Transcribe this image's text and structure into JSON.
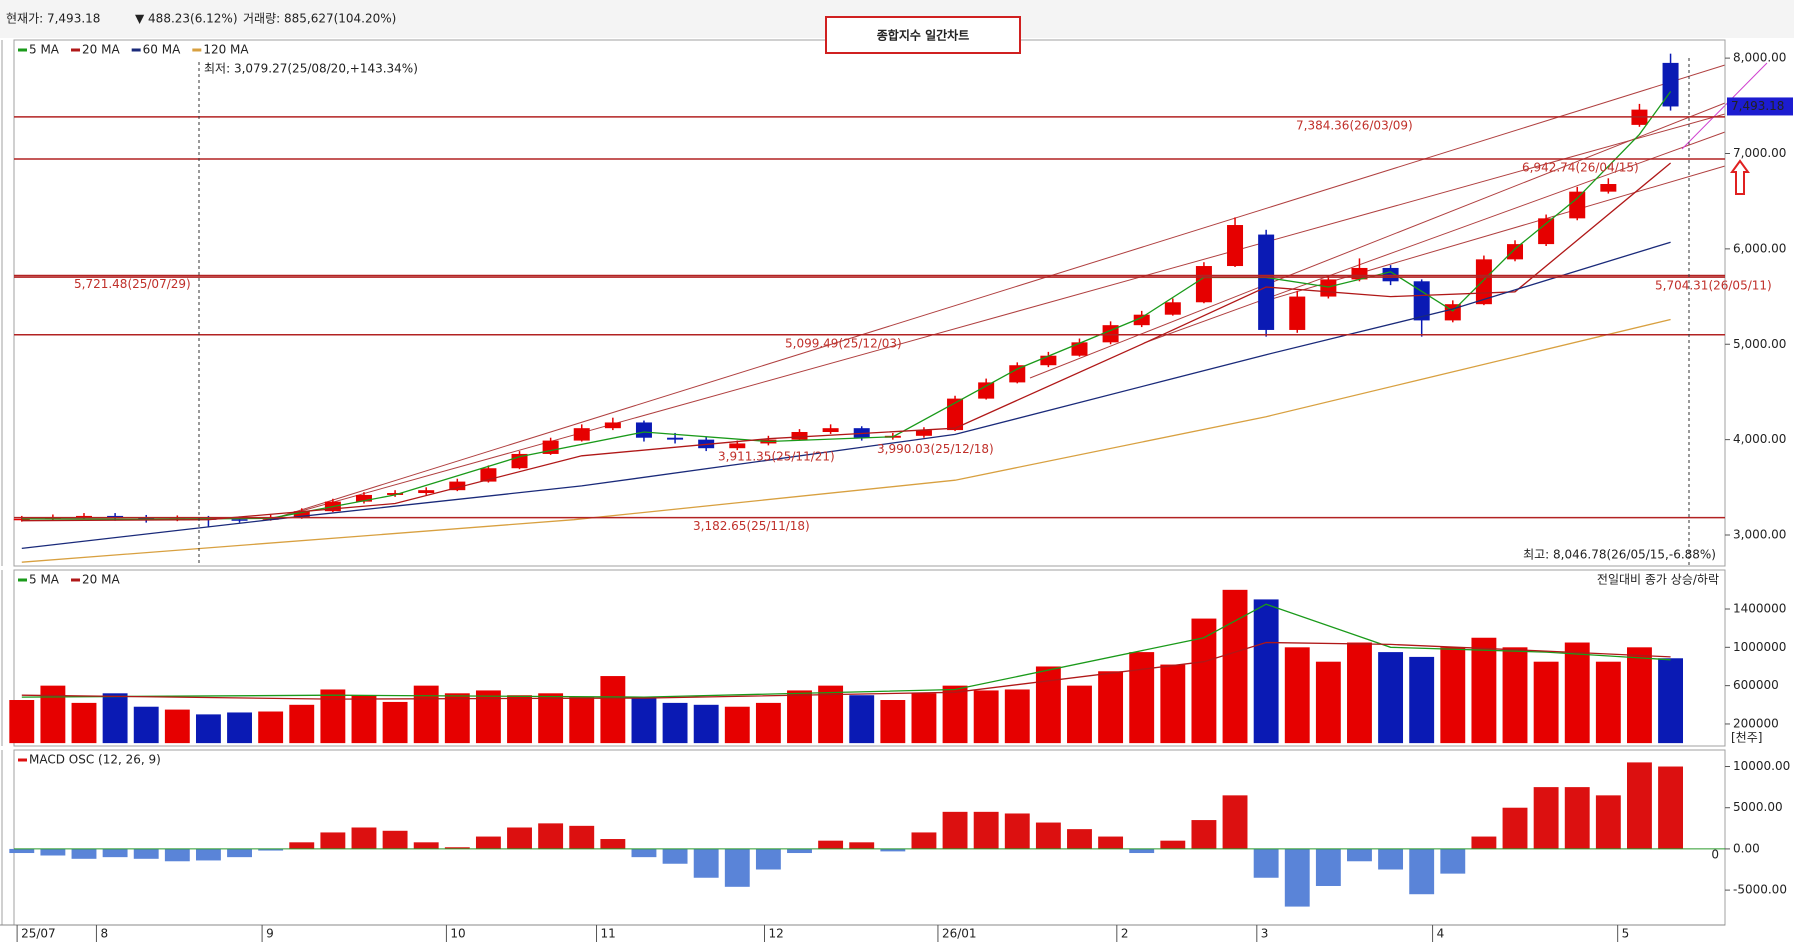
{
  "header": {
    "price_label": "현재가: 7,493.18",
    "change": "▼ 488.23(6.12%)",
    "volume_label": "거래량: 885,627(104.20%)",
    "title": "종합지수 일간차트"
  },
  "chart_data": [
    {
      "type": "candlestick",
      "xlim": [
        0,
        220
      ],
      "x": [
        1,
        5,
        9,
        13,
        17,
        21,
        25,
        29,
        33,
        37,
        41,
        45,
        49,
        53,
        57,
        61,
        65,
        69,
        73,
        77,
        81,
        85,
        89,
        93,
        97,
        101,
        105,
        109,
        113,
        117,
        121,
        125,
        129,
        133,
        137,
        141,
        145,
        149,
        153,
        157,
        161,
        165,
        169,
        173,
        177,
        181,
        185,
        189,
        193,
        197,
        201,
        205,
        209,
        213
      ],
      "open": [
        3160,
        3170,
        3185,
        3200,
        3180,
        3160,
        3175,
        3165,
        3160,
        3180,
        3250,
        3350,
        3420,
        3440,
        3470,
        3560,
        3700,
        3850,
        3990,
        4120,
        4180,
        4020,
        4000,
        3910,
        3960,
        4000,
        4080,
        4120,
        4020,
        4040,
        4100,
        4430,
        4600,
        4780,
        4880,
        5020,
        5200,
        5310,
        5440,
        5820,
        6150,
        5150,
        5500,
        5680,
        5800,
        5660,
        5250,
        5420,
        5890,
        6050,
        6320,
        6600,
        7300,
        7950
      ],
      "high": [
        3200,
        3215,
        3230,
        3230,
        3210,
        3205,
        3200,
        3195,
        3210,
        3280,
        3380,
        3450,
        3470,
        3500,
        3590,
        3730,
        3880,
        4020,
        4160,
        4230,
        4200,
        4070,
        4030,
        3990,
        4040,
        4110,
        4160,
        4140,
        4070,
        4130,
        4460,
        4640,
        4810,
        4920,
        5060,
        5240,
        5350,
        5480,
        5860,
        6330,
        6200,
        5560,
        5720,
        5900,
        5830,
        5680,
        5460,
        5930,
        6090,
        6360,
        6650,
        6740,
        7520,
        8046.78
      ],
      "low": [
        3140,
        3155,
        3170,
        3150,
        3130,
        3145,
        3079.27,
        3130,
        3150,
        3170,
        3240,
        3330,
        3400,
        3420,
        3460,
        3550,
        3690,
        3840,
        3980,
        4100,
        3980,
        3960,
        3880,
        3890,
        3940,
        3990,
        4060,
        3990,
        4000,
        4020,
        4090,
        4420,
        4590,
        4760,
        4870,
        5000,
        5180,
        5300,
        5430,
        5810,
        5080,
        5120,
        5480,
        5660,
        5620,
        5080,
        5230,
        5410,
        5870,
        6030,
        6300,
        6580,
        7280,
        7450
      ],
      "close": [
        3170,
        3185,
        3200,
        3180,
        3160,
        3175,
        3165,
        3160,
        3180,
        3250,
        3350,
        3420,
        3440,
        3470,
        3560,
        3700,
        3850,
        3990,
        4120,
        4180,
        4020,
        4000,
        3910,
        3960,
        4000,
        4080,
        4120,
        4020,
        4040,
        4100,
        4430,
        4600,
        4780,
        4880,
        5020,
        5200,
        5310,
        5440,
        5820,
        6250,
        5150,
        5500,
        5680,
        5800,
        5660,
        5250,
        5420,
        5890,
        6050,
        6320,
        6600,
        6680,
        7460,
        7493.18
      ],
      "up_color": "#e60000",
      "down_color": "#0a1ab4",
      "series": [
        {
          "name": "5 MA",
          "color": "#1a9a1a",
          "x": [
            1,
            17,
            33,
            49,
            65,
            81,
            97,
            113,
            129,
            145,
            153,
            161,
            169,
            177,
            185,
            193,
            201,
            209,
            213
          ],
          "values": [
            3170,
            3165,
            3175,
            3420,
            3820,
            4080,
            3980,
            4030,
            4740,
            5280,
            5700,
            5700,
            5600,
            5760,
            5350,
            6000,
            6530,
            7200,
            7650
          ]
        },
        {
          "name": "20 MA",
          "color": "#b01818",
          "x": [
            1,
            25,
            49,
            73,
            97,
            121,
            145,
            161,
            177,
            193,
            213
          ],
          "values": [
            3150,
            3160,
            3330,
            3830,
            4010,
            4120,
            5000,
            5600,
            5500,
            5550,
            6900
          ]
        },
        {
          "name": "60 MA",
          "color": "#1a2a7a",
          "x": [
            1,
            33,
            73,
            121,
            161,
            185,
            213
          ],
          "values": [
            2860,
            3160,
            3515,
            4055,
            4890,
            5370,
            6070
          ]
        },
        {
          "name": "120 MA",
          "color": "#d8a040",
          "x": [
            1,
            72,
            121,
            161,
            213
          ],
          "values": [
            2715,
            3160,
            3575,
            4240,
            5260
          ]
        }
      ],
      "ylim": [
        2675,
        8190
      ],
      "yticks": [
        {
          "value": 3000,
          "label": "3,000.00"
        },
        {
          "value": 4000,
          "label": "4,000.00"
        },
        {
          "value": 5000,
          "label": "5,000.00"
        },
        {
          "value": 6000,
          "label": "6,000.00"
        },
        {
          "value": 7000,
          "label": "7,000.00"
        },
        {
          "value": 8000,
          "label": "8,000.00"
        }
      ],
      "last_price": {
        "value": 7493.18,
        "label": "7,493.18"
      },
      "levels": [
        {
          "value": 7384.36,
          "label": "7,384.36(26/03/09)"
        },
        {
          "value": 6942.74,
          "label": "6,942.74(26/04/15)"
        },
        {
          "value": 5721.48,
          "label": "5,721.48(25/07/29)"
        },
        {
          "value": 5704.31,
          "label": "5,704.31(26/05/11)"
        },
        {
          "value": 5099.49,
          "label": "5,099.49(25/12/03)"
        },
        {
          "value": 3182.65,
          "label": "3,182.65(25/11/18)"
        }
      ],
      "point_labels": [
        {
          "value": 3911.35,
          "label": "3,911.35(25/11/21)"
        },
        {
          "value": 3990.03,
          "label": "3,990.03(25/12/18)"
        }
      ],
      "low_note": "최저: 3,079.27(25/08/20,+143.34%)",
      "high_note": "최고: 8,046.78(26/05/15,-6.88%)"
    },
    {
      "type": "bar",
      "xlim": [
        0,
        220
      ],
      "x": [
        1,
        5,
        9,
        13,
        17,
        21,
        25,
        29,
        33,
        37,
        41,
        45,
        49,
        53,
        57,
        61,
        65,
        69,
        73,
        77,
        81,
        85,
        89,
        93,
        97,
        101,
        105,
        109,
        113,
        117,
        121,
        125,
        129,
        133,
        137,
        141,
        145,
        149,
        153,
        157,
        161,
        165,
        169,
        173,
        177,
        181,
        185,
        189,
        193,
        197,
        201,
        205,
        209,
        213
      ],
      "values": [
        450000,
        600000,
        420000,
        520000,
        380000,
        350000,
        300000,
        320000,
        330000,
        400000,
        560000,
        500000,
        430000,
        600000,
        520000,
        550000,
        500000,
        520000,
        480000,
        700000,
        470000,
        420000,
        400000,
        380000,
        420000,
        550000,
        600000,
        500000,
        450000,
        520000,
        600000,
        550000,
        560000,
        800000,
        600000,
        750000,
        950000,
        820000,
        1300000,
        1600000,
        1500000,
        1000000,
        850000,
        1050000,
        950000,
        900000,
        1000000,
        1100000,
        1000000,
        850000,
        1050000,
        850000,
        1000000,
        885627
      ],
      "up_color": "#e60000",
      "down_color": "#0a1ab4",
      "series": [
        {
          "name": "5 MA",
          "color": "#1a9a1a",
          "x": [
            1,
            41,
            81,
            121,
            153,
            161,
            177,
            197,
            213
          ],
          "values": [
            480000,
            500000,
            480000,
            560000,
            1100000,
            1450000,
            1000000,
            950000,
            870000
          ]
        },
        {
          "name": "20 MA",
          "color": "#b01818",
          "x": [
            1,
            41,
            81,
            121,
            153,
            161,
            177,
            197,
            213
          ],
          "values": [
            500000,
            460000,
            470000,
            530000,
            850000,
            1050000,
            1030000,
            960000,
            900000
          ]
        }
      ],
      "ylim": [
        -30000,
        1807000
      ],
      "yticks": [
        200000,
        600000,
        1000000,
        1400000
      ],
      "note": "전일대비 종가 상승/하락",
      "unit": "[천주]"
    },
    {
      "type": "bar",
      "xlim": [
        0,
        220
      ],
      "x": [
        1,
        5,
        9,
        13,
        17,
        21,
        25,
        29,
        33,
        37,
        41,
        45,
        49,
        53,
        57,
        61,
        65,
        69,
        73,
        77,
        81,
        85,
        89,
        93,
        97,
        101,
        105,
        109,
        113,
        117,
        121,
        125,
        129,
        133,
        137,
        141,
        145,
        149,
        153,
        157,
        161,
        165,
        169,
        173,
        177,
        181,
        185,
        189,
        193,
        197,
        201,
        205,
        209,
        213
      ],
      "values": [
        -500,
        -800,
        -1200,
        -1000,
        -1200,
        -1500,
        -1400,
        -1000,
        -200,
        800,
        2000,
        2600,
        2200,
        800,
        200,
        1500,
        2600,
        3100,
        2800,
        1200,
        -1000,
        -1800,
        -3500,
        -4600,
        -2500,
        -500,
        1000,
        800,
        -300,
        2000,
        4500,
        4500,
        4300,
        3200,
        2400,
        1500,
        -500,
        1000,
        3500,
        6500,
        -3500,
        -7000,
        -4500,
        -1500,
        -2500,
        -5500,
        -3000,
        1500,
        5000,
        7500,
        7500,
        6500,
        10500,
        10000
      ],
      "positive_color": "#dc1010",
      "negative_color": "#5a84d8",
      "legend": "MACD OSC (12, 26, 9)",
      "ylim": [
        -9235,
        12005
      ],
      "yticks": [
        {
          "value": -5000,
          "label": "-5000.00"
        },
        {
          "value": 0,
          "label": "0.00"
        },
        {
          "value": 5000,
          "label": "5000.00"
        },
        {
          "value": 10000,
          "label": "10000.00"
        }
      ],
      "baseline": 0,
      "xticks": [
        {
          "value": 0.4,
          "label": "25/07"
        },
        {
          "value": 10.6,
          "label": "8"
        },
        {
          "value": 31.9,
          "label": "9"
        },
        {
          "value": 55.6,
          "label": "10"
        },
        {
          "value": 74.9,
          "label": "11"
        },
        {
          "value": 96.5,
          "label": "12"
        },
        {
          "value": 118.8,
          "label": "26/01"
        },
        {
          "value": 141.8,
          "label": "2"
        },
        {
          "value": 159.8,
          "label": "3"
        },
        {
          "value": 182.4,
          "label": "4"
        },
        {
          "value": 206.2,
          "label": "5"
        }
      ]
    }
  ]
}
